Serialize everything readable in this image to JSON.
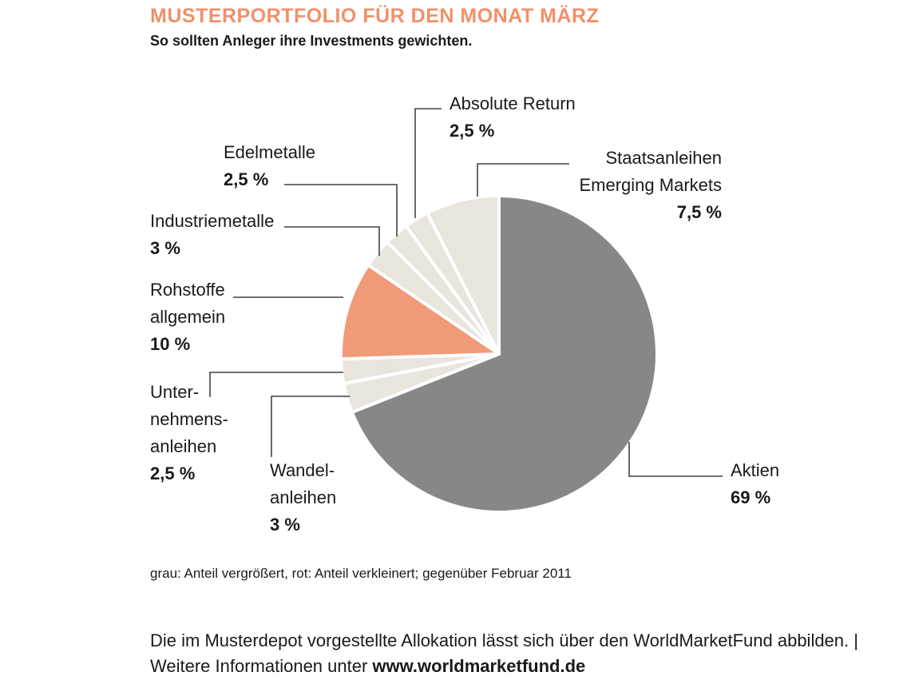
{
  "header": {
    "title": "MUSTERPORTFOLIO FÜR DEN MONAT MÄRZ",
    "subtitle": "So sollten Anleger ihre Investments gewichten."
  },
  "colors": {
    "title": "#f0906a",
    "grey": "#878787",
    "red": "#f09a78",
    "neutral": "#e9e5dd",
    "leader": "#1a1a1a"
  },
  "chart_data": {
    "type": "pie",
    "start": "12 o'clock, clockwise",
    "slices": [
      {
        "label_lines": [
          "Aktien"
        ],
        "value": 69,
        "value_label": "69 %",
        "category": "grey"
      },
      {
        "label_lines": [
          "Wandel-",
          "anleihen"
        ],
        "value": 3,
        "value_label": "3 %",
        "category": "neutral"
      },
      {
        "label_lines": [
          "Unter-",
          "nehmens-",
          "anleihen"
        ],
        "value": 2.5,
        "value_label": "2,5 %",
        "category": "neutral"
      },
      {
        "label_lines": [
          "Rohstoffe",
          "allgemein"
        ],
        "value": 10,
        "value_label": "10 %",
        "category": "red"
      },
      {
        "label_lines": [
          "Industriemetalle"
        ],
        "value": 3,
        "value_label": "3 %",
        "category": "neutral"
      },
      {
        "label_lines": [
          "Edelmetalle"
        ],
        "value": 2.5,
        "value_label": "2,5 %",
        "category": "neutral"
      },
      {
        "label_lines": [
          "Absolute Return"
        ],
        "value": 2.5,
        "value_label": "2,5 %",
        "category": "neutral"
      },
      {
        "label_lines": [
          "Staatsanleihen",
          "Emerging Markets"
        ],
        "value": 7.5,
        "value_label": "7,5 %",
        "category": "neutral"
      }
    ]
  },
  "note": "grau: Anteil vergrößert, rot: Anteil verkleinert; gegenüber Februar 2011",
  "footer": {
    "text": "Die im Musterdepot vorgestellte Allokation lässt sich über den WorldMarketFund abbilden. | Weitere Informationen unter ",
    "url": "www.worldmarketfund.de"
  }
}
